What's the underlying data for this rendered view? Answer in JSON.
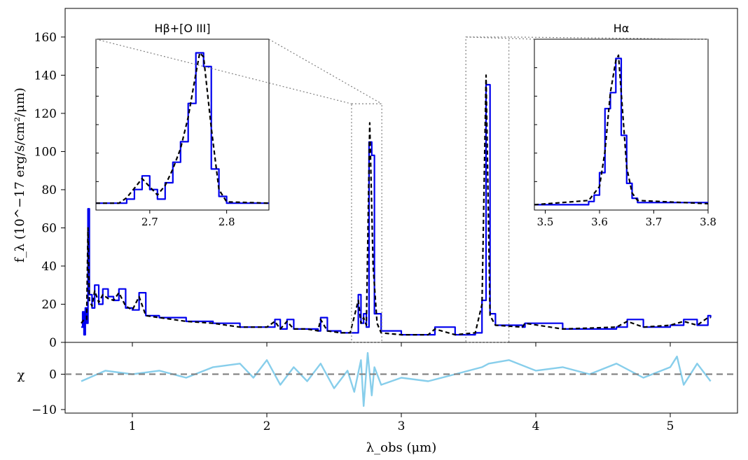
{
  "chart_data": [
    {
      "type": "line",
      "panel": "main",
      "ylabel": "f_λ (10^−17 erg/s/cm²/μm)",
      "xlim": [
        0.5,
        5.5
      ],
      "ylim": [
        0,
        175
      ],
      "xticks": [
        1,
        2,
        3,
        4,
        5
      ],
      "yticks": [
        0,
        20,
        40,
        60,
        80,
        100,
        120,
        140,
        160
      ],
      "series": [
        {
          "color": "#0000ee",
          "style": "step",
          "x": [
            0.62,
            0.63,
            0.64,
            0.65,
            0.66,
            0.67,
            0.68,
            0.7,
            0.72,
            0.75,
            0.78,
            0.82,
            0.86,
            0.9,
            0.95,
            1.0,
            1.05,
            1.1,
            1.2,
            1.4,
            1.6,
            1.8,
            2.0,
            2.06,
            2.1,
            2.15,
            2.2,
            2.3,
            2.38,
            2.4,
            2.45,
            2.55,
            2.62,
            2.68,
            2.7,
            2.72,
            2.74,
            2.76,
            2.78,
            2.8,
            2.85,
            3.0,
            3.2,
            3.25,
            3.4,
            3.55,
            3.6,
            3.63,
            3.66,
            3.7,
            3.9,
            3.92,
            4.2,
            4.6,
            4.68,
            4.8,
            5.0,
            5.1,
            5.2,
            5.28,
            5.3
          ],
          "y": [
            8,
            16,
            4,
            18,
            10,
            70,
            25,
            18,
            30,
            20,
            28,
            24,
            22,
            28,
            18,
            17,
            26,
            14,
            13,
            11,
            10,
            8,
            8,
            12,
            7,
            12,
            7,
            7,
            6,
            13,
            6,
            5,
            5,
            25,
            10,
            15,
            8,
            105,
            98,
            15,
            6,
            4,
            4,
            8,
            4,
            5,
            22,
            135,
            15,
            9,
            8,
            10,
            7,
            8,
            12,
            8,
            9,
            12,
            9,
            14,
            13
          ]
        },
        {
          "color": "#000000",
          "style": "dashed",
          "x": [
            0.62,
            0.64,
            0.66,
            0.67,
            0.68,
            0.7,
            0.72,
            0.75,
            0.78,
            0.82,
            0.86,
            0.9,
            0.95,
            1.0,
            1.05,
            1.1,
            1.2,
            1.4,
            1.6,
            1.8,
            2.0,
            2.06,
            2.1,
            2.15,
            2.2,
            2.3,
            2.38,
            2.4,
            2.45,
            2.55,
            2.62,
            2.68,
            2.7,
            2.72,
            2.74,
            2.765,
            2.79,
            2.82,
            2.85,
            3.0,
            3.2,
            3.25,
            3.4,
            3.55,
            3.6,
            3.63,
            3.66,
            3.7,
            3.9,
            3.92,
            4.2,
            4.6,
            4.68,
            4.8,
            5.0,
            5.1,
            5.2,
            5.28,
            5.3
          ],
          "y": [
            10,
            12,
            12,
            60,
            22,
            19,
            27,
            21,
            25,
            23,
            22,
            26,
            19,
            17,
            24,
            14,
            13,
            11,
            10,
            8,
            8,
            11,
            7,
            11,
            7,
            7,
            6,
            12,
            6,
            5,
            5,
            22,
            10,
            13,
            9,
            115,
            40,
            10,
            5,
            4,
            4,
            7,
            4,
            5,
            20,
            140,
            14,
            9,
            8,
            10,
            7,
            8,
            11,
            8,
            9,
            11,
            9,
            13,
            13
          ]
        }
      ]
    },
    {
      "type": "line",
      "panel": "residual",
      "ylabel": "χ",
      "xlabel": "λ_obs (μm)",
      "ylim": [
        -11,
        9
      ],
      "yticks": [
        -10,
        0
      ],
      "ytick_labels": [
        "−10",
        "0"
      ],
      "zero_line": {
        "color": "#808080",
        "style": "dashed"
      },
      "series": [
        {
          "color": "#87ceeb",
          "x": [
            0.62,
            0.8,
            1.0,
            1.2,
            1.4,
            1.6,
            1.8,
            1.9,
            2.0,
            2.1,
            2.2,
            2.3,
            2.4,
            2.5,
            2.6,
            2.65,
            2.7,
            2.72,
            2.75,
            2.78,
            2.8,
            2.85,
            3.0,
            3.2,
            3.4,
            3.6,
            3.65,
            3.8,
            4.0,
            4.2,
            4.4,
            4.6,
            4.8,
            5.0,
            5.05,
            5.1,
            5.2,
            5.3
          ],
          "y": [
            -2,
            1,
            0,
            1,
            -1,
            2,
            3,
            -1,
            4,
            -3,
            2,
            -2,
            3,
            -4,
            1,
            -5,
            4,
            -9,
            6,
            -6,
            2,
            -3,
            -1,
            -2,
            0,
            2,
            3,
            4,
            1,
            2,
            0,
            3,
            -1,
            2,
            5,
            -3,
            3,
            -2
          ]
        }
      ]
    },
    {
      "type": "line",
      "panel": "inset",
      "title": "Hβ+[O III]",
      "xlim": [
        2.63,
        2.855
      ],
      "ylim": [
        0,
        125
      ],
      "xticks": [
        2.7,
        2.8
      ],
      "xtick_labels": [
        "2.7",
        "2.8"
      ],
      "series": [
        {
          "color": "#0000ee",
          "style": "step",
          "x": [
            2.63,
            2.66,
            2.67,
            2.68,
            2.69,
            2.7,
            2.71,
            2.72,
            2.73,
            2.74,
            2.75,
            2.76,
            2.77,
            2.78,
            2.79,
            2.8,
            2.855
          ],
          "y": [
            5,
            5,
            8,
            15,
            25,
            15,
            8,
            20,
            35,
            50,
            78,
            115,
            105,
            30,
            10,
            5,
            5
          ]
        },
        {
          "color": "#000000",
          "style": "dashed",
          "x": [
            2.63,
            2.66,
            2.67,
            2.68,
            2.69,
            2.7,
            2.71,
            2.72,
            2.73,
            2.74,
            2.75,
            2.76,
            2.765,
            2.77,
            2.78,
            2.79,
            2.8,
            2.855
          ],
          "y": [
            5,
            5,
            9,
            16,
            23,
            17,
            11,
            18,
            30,
            45,
            68,
            100,
            115,
            112,
            60,
            15,
            6,
            5
          ]
        }
      ]
    },
    {
      "type": "line",
      "panel": "inset",
      "title": "Hα",
      "xlim": [
        3.48,
        3.8
      ],
      "ylim": [
        0,
        160
      ],
      "xticks": [
        3.5,
        3.6,
        3.7,
        3.8
      ],
      "xtick_labels": [
        "3.5",
        "3.6",
        "3.7",
        "3.8"
      ],
      "series": [
        {
          "color": "#0000ee",
          "style": "step",
          "x": [
            3.48,
            3.58,
            3.59,
            3.6,
            3.61,
            3.62,
            3.63,
            3.64,
            3.65,
            3.66,
            3.67,
            3.8
          ],
          "y": [
            5,
            8,
            14,
            35,
            95,
            110,
            142,
            70,
            25,
            11,
            7,
            6
          ]
        },
        {
          "color": "#000000",
          "style": "dashed",
          "x": [
            3.48,
            3.58,
            3.6,
            3.61,
            3.62,
            3.63,
            3.635,
            3.64,
            3.65,
            3.66,
            3.67,
            3.8
          ],
          "y": [
            5,
            9,
            22,
            55,
            110,
            140,
            145,
            110,
            40,
            16,
            9,
            6
          ]
        }
      ]
    }
  ]
}
